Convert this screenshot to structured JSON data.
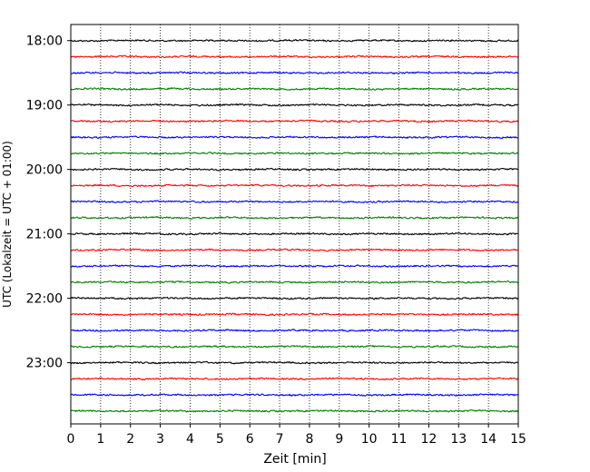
{
  "chart_data": {
    "type": "line",
    "title": "",
    "xlabel": "Zeit  [min]",
    "ylabel": "UTC (Lokalzeit = UTC + 01:00)",
    "xlim": [
      0,
      15
    ],
    "x_ticks": [
      0,
      1,
      2,
      3,
      4,
      5,
      6,
      7,
      8,
      9,
      10,
      11,
      12,
      13,
      14,
      15
    ],
    "y_ticks": [
      "18:00",
      "19:00",
      "20:00",
      "21:00",
      "22:00",
      "23:00"
    ],
    "y_range_hours": [
      "17:45",
      "23:57"
    ],
    "row_interval_min": 15,
    "grid_x": true,
    "rows": [
      {
        "start": "18:00",
        "color": "#000000"
      },
      {
        "start": "18:15",
        "color": "#ff0000"
      },
      {
        "start": "18:30",
        "color": "#0000ff"
      },
      {
        "start": "18:45",
        "color": "#008000"
      },
      {
        "start": "19:00",
        "color": "#000000"
      },
      {
        "start": "19:15",
        "color": "#ff0000"
      },
      {
        "start": "19:30",
        "color": "#0000ff"
      },
      {
        "start": "19:45",
        "color": "#008000"
      },
      {
        "start": "20:00",
        "color": "#000000"
      },
      {
        "start": "20:15",
        "color": "#ff0000"
      },
      {
        "start": "20:30",
        "color": "#0000ff"
      },
      {
        "start": "20:45",
        "color": "#008000"
      },
      {
        "start": "21:00",
        "color": "#000000"
      },
      {
        "start": "21:15",
        "color": "#ff0000"
      },
      {
        "start": "21:30",
        "color": "#0000ff"
      },
      {
        "start": "21:45",
        "color": "#008000"
      },
      {
        "start": "22:00",
        "color": "#000000"
      },
      {
        "start": "22:15",
        "color": "#ff0000"
      },
      {
        "start": "22:30",
        "color": "#0000ff"
      },
      {
        "start": "22:45",
        "color": "#008000"
      },
      {
        "start": "23:00",
        "color": "#000000"
      },
      {
        "start": "23:15",
        "color": "#ff0000"
      },
      {
        "start": "23:30",
        "color": "#0000ff"
      },
      {
        "start": "23:45",
        "color": "#008000"
      }
    ]
  }
}
